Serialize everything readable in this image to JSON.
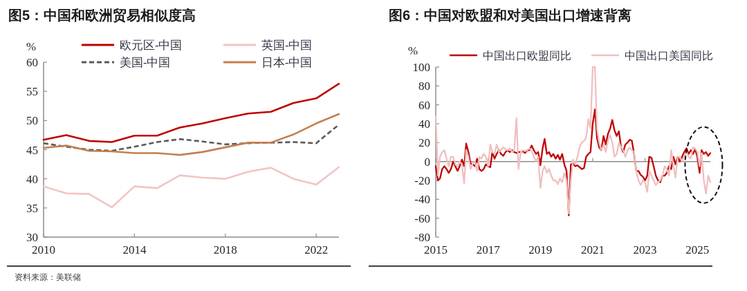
{
  "chart_data": [
    {
      "type": "line",
      "title": "图5：中国和欧洲贸易相似度高",
      "ylabel": "%",
      "x": [
        2010,
        2011,
        2012,
        2013,
        2014,
        2015,
        2016,
        2017,
        2018,
        2019,
        2020,
        2021,
        2022,
        2023
      ],
      "series": [
        {
          "name": "欧元区-中国",
          "color": "#c00000",
          "values": [
            46.7,
            47.5,
            46.5,
            46.3,
            47.4,
            47.4,
            48.8,
            49.5,
            50.4,
            51.2,
            51.5,
            53.0,
            53.8,
            56.3
          ]
        },
        {
          "name": "美国-中国",
          "color": "#595959",
          "line_style": "dashed",
          "values": [
            46.1,
            45.5,
            45.0,
            44.8,
            45.5,
            46.3,
            46.8,
            46.4,
            45.9,
            46.1,
            46.2,
            46.3,
            46.1,
            49.3
          ]
        },
        {
          "name": "英国-中国",
          "color": "#f2c4c4",
          "values": [
            38.7,
            37.5,
            37.4,
            35.1,
            38.7,
            38.4,
            40.6,
            40.2,
            40.0,
            41.2,
            41.9,
            40.0,
            39.0,
            42.0
          ]
        },
        {
          "name": "日本-中国",
          "color": "#c47f4e",
          "values": [
            45.3,
            45.7,
            44.8,
            44.7,
            44.4,
            44.4,
            44.1,
            44.6,
            45.4,
            46.2,
            46.2,
            47.6,
            49.5,
            51.1
          ]
        }
      ],
      "xlim": [
        2010,
        2023
      ],
      "xticks": [
        2010,
        2014,
        2018,
        2022
      ],
      "ylim": [
        30,
        60
      ],
      "yticks": [
        30,
        35,
        40,
        45,
        50,
        55,
        60
      ],
      "legend": "top",
      "line_style": "solid",
      "annotations": [
        "资料来源：美联储"
      ]
    },
    {
      "type": "line",
      "title": "图6：中国对欧盟和对美国出口增速背离",
      "ylabel": "%",
      "x": [
        "2015-01",
        "2015-02",
        "2015-03",
        "2015-04",
        "2015-05",
        "2015-06",
        "2015-07",
        "2015-08",
        "2015-09",
        "2015-10",
        "2015-11",
        "2015-12",
        "2016-01",
        "2016-02",
        "2016-03",
        "2016-04",
        "2016-05",
        "2016-06",
        "2016-07",
        "2016-08",
        "2016-09",
        "2016-10",
        "2016-11",
        "2016-12",
        "2017-01",
        "2017-02",
        "2017-03",
        "2017-04",
        "2017-05",
        "2017-06",
        "2017-07",
        "2017-08",
        "2017-09",
        "2017-10",
        "2017-11",
        "2017-12",
        "2018-01",
        "2018-02",
        "2018-03",
        "2018-04",
        "2018-05",
        "2018-06",
        "2018-07",
        "2018-08",
        "2018-09",
        "2018-10",
        "2018-11",
        "2018-12",
        "2019-01",
        "2019-02",
        "2019-03",
        "2019-04",
        "2019-05",
        "2019-06",
        "2019-07",
        "2019-08",
        "2019-09",
        "2019-10",
        "2019-11",
        "2019-12",
        "2020-01",
        "2020-02",
        "2020-03",
        "2020-04",
        "2020-05",
        "2020-06",
        "2020-07",
        "2020-08",
        "2020-09",
        "2020-10",
        "2020-11",
        "2020-12",
        "2021-01",
        "2021-02",
        "2021-03",
        "2021-04",
        "2021-05",
        "2021-06",
        "2021-07",
        "2021-08",
        "2021-09",
        "2021-10",
        "2021-11",
        "2021-12",
        "2022-01",
        "2022-02",
        "2022-03",
        "2022-04",
        "2022-05",
        "2022-06",
        "2022-07",
        "2022-08",
        "2022-09",
        "2022-10",
        "2022-11",
        "2022-12",
        "2023-01",
        "2023-02",
        "2023-03",
        "2023-04",
        "2023-05",
        "2023-06",
        "2023-07",
        "2023-08",
        "2023-09",
        "2023-10",
        "2023-11",
        "2023-12",
        "2024-01",
        "2024-02",
        "2024-03",
        "2024-04",
        "2024-05",
        "2024-06",
        "2024-07",
        "2024-08",
        "2024-09",
        "2024-10",
        "2024-11",
        "2024-12",
        "2025-01",
        "2025-02",
        "2025-03",
        "2025-04",
        "2025-05",
        "2025-06",
        "2025-07"
      ],
      "series": [
        {
          "name": "中国出口欧盟同比",
          "color": "#c00000",
          "values": [
            -5,
            -20,
            -18,
            -8,
            -5,
            -8,
            -12,
            -8,
            0,
            -5,
            -10,
            -5,
            2,
            -5,
            19,
            10,
            -2,
            -3,
            -5,
            3,
            -8,
            -10,
            -8,
            -3,
            -5,
            -6,
            10,
            3,
            8,
            12,
            8,
            6,
            10,
            12,
            10,
            12,
            10,
            9,
            10,
            10,
            11,
            9,
            12,
            12,
            17,
            12,
            8,
            10,
            -4,
            14,
            24,
            8,
            10,
            5,
            8,
            3,
            7,
            2,
            8,
            -3,
            -10,
            -57,
            -3,
            -2,
            -5,
            -4,
            -6,
            -8,
            -7,
            5,
            8,
            10,
            40,
            55,
            25,
            15,
            12,
            27,
            18,
            29,
            35,
            44,
            33,
            27,
            32,
            15,
            10,
            18,
            20,
            23,
            22,
            8,
            -10,
            -10,
            -14,
            -16,
            -20,
            -15,
            5,
            4,
            -5,
            -15,
            -20,
            -22,
            -15,
            -15,
            -12,
            -5,
            -8,
            5,
            -3,
            5,
            0,
            5,
            10,
            14,
            8,
            12,
            8,
            13,
            5,
            -12,
            12,
            8,
            10,
            6,
            9
          ]
        },
        {
          "name": "中国出口美国同比",
          "color": "#f0bfbf",
          "values": [
            48,
            -15,
            5,
            10,
            12,
            3,
            -5,
            5,
            5,
            -3,
            -5,
            0,
            -3,
            -23,
            12,
            5,
            -8,
            -2,
            0,
            -10,
            5,
            3,
            8,
            5,
            -5,
            18,
            10,
            8,
            18,
            10,
            12,
            15,
            13,
            12,
            14,
            10,
            12,
            46,
            -8,
            10,
            12,
            11,
            12,
            14,
            12,
            5,
            0,
            5,
            -28,
            -10,
            -5,
            -12,
            -8,
            -15,
            -20,
            -20,
            -24,
            -18,
            -22,
            -12,
            -20,
            -55,
            -20,
            2,
            -3,
            5,
            15,
            20,
            22,
            25,
            45,
            35,
            100,
            100,
            35,
            20,
            12,
            18,
            10,
            22,
            28,
            20,
            5,
            8,
            20,
            15,
            12,
            5,
            12,
            15,
            12,
            10,
            -10,
            -20,
            -25,
            -20,
            -22,
            -32,
            -10,
            -15,
            -20,
            -25,
            -22,
            -20,
            -15,
            -5,
            -8,
            -15,
            12,
            -5,
            -17,
            5,
            5,
            0,
            5,
            10,
            5,
            3,
            15,
            14,
            10,
            -5,
            9,
            -20,
            -34,
            -15,
            -22
          ]
        }
      ],
      "xlim": [
        "2015-01",
        "2025-07"
      ],
      "xticks": [
        "2015",
        "2017",
        "2019",
        "2021",
        "2023",
        "2025"
      ],
      "ylim": [
        -80,
        100
      ],
      "yticks": [
        -80,
        -60,
        -40,
        -20,
        0,
        20,
        40,
        60,
        80,
        100
      ],
      "legend": "top",
      "line_style": "solid"
    }
  ]
}
